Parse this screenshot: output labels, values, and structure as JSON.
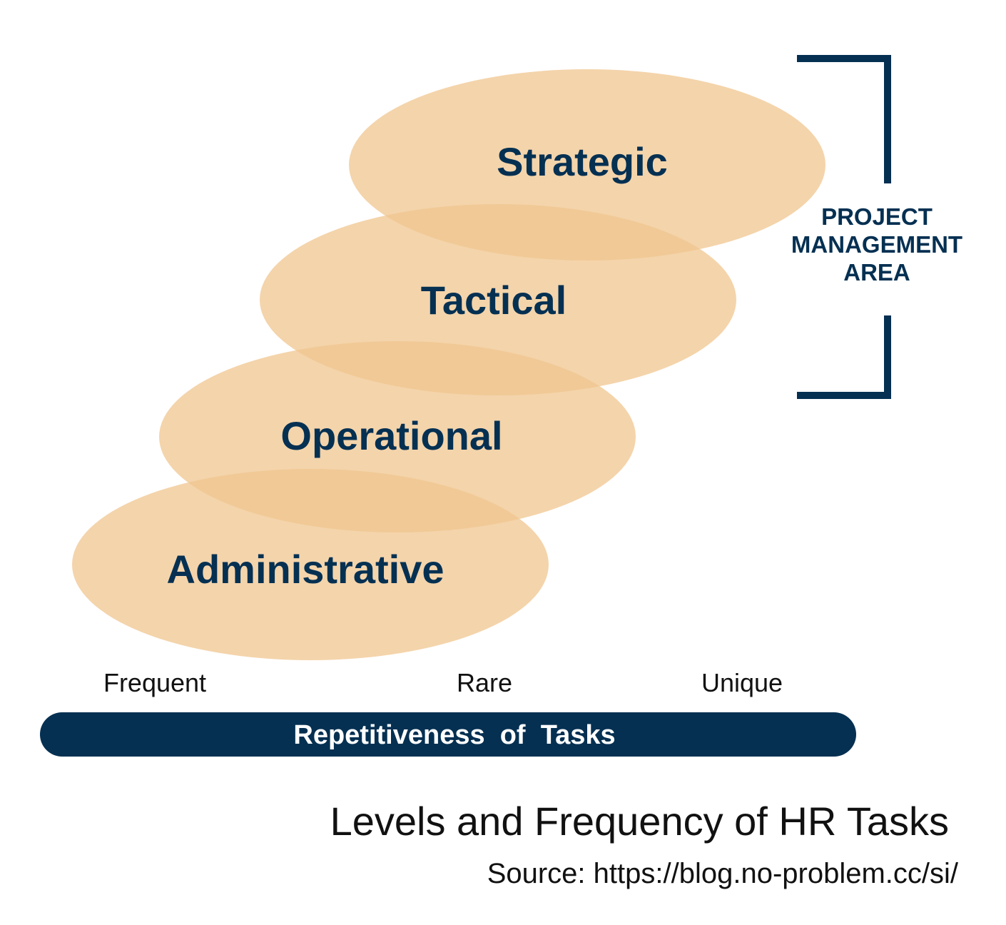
{
  "colors": {
    "ellipse_fill": "#f0c58f",
    "dark_navy": "#053052",
    "text_dark": "#111111",
    "white": "#ffffff"
  },
  "levels": [
    {
      "label": "Strategic"
    },
    {
      "label": "Tactical"
    },
    {
      "label": "Operational"
    },
    {
      "label": "Administrative"
    }
  ],
  "project_management": {
    "lines": [
      "PROJECT",
      "MANAGEMENT",
      "AREA"
    ]
  },
  "frequency_labels": [
    "Frequent",
    "Rare",
    "Unique"
  ],
  "axis": {
    "label": "Repetitiveness  of  Tasks"
  },
  "caption": {
    "title": "Levels and Frequency of HR Tasks",
    "source": "Source: https://blog.no-problem.cc/si/"
  }
}
